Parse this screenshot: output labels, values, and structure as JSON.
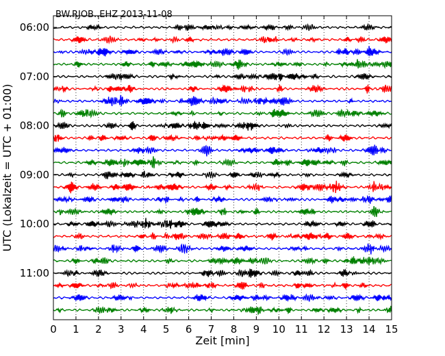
{
  "chart_data": {
    "type": "line",
    "title": "BW.RJOB..EHZ 2013-11-08",
    "xlabel": "Zeit  [min]",
    "ylabel": "UTC (Lokalzeit = UTC + 01:00)",
    "xlim": [
      0,
      15
    ],
    "x_ticks": [
      "0",
      "1",
      "2",
      "3",
      "4",
      "5",
      "6",
      "7",
      "8",
      "9",
      "10",
      "11",
      "12",
      "13",
      "14",
      "15"
    ],
    "y_tick_labels": [
      "06:00",
      "07:00",
      "08:00",
      "09:00",
      "10:00",
      "11:00"
    ],
    "grid": "vertical-dotted",
    "trace_colors": [
      "#000000",
      "#ff0000",
      "#0000ff",
      "#008000"
    ],
    "rows": [
      "06:00",
      "06:15",
      "06:30",
      "06:45",
      "07:00",
      "07:15",
      "07:30",
      "07:45",
      "08:00",
      "08:15",
      "08:30",
      "08:45",
      "09:00",
      "09:15",
      "09:30",
      "09:45",
      "10:00",
      "10:15",
      "10:30",
      "10:45",
      "11:00",
      "11:15",
      "11:30",
      "11:45"
    ]
  }
}
